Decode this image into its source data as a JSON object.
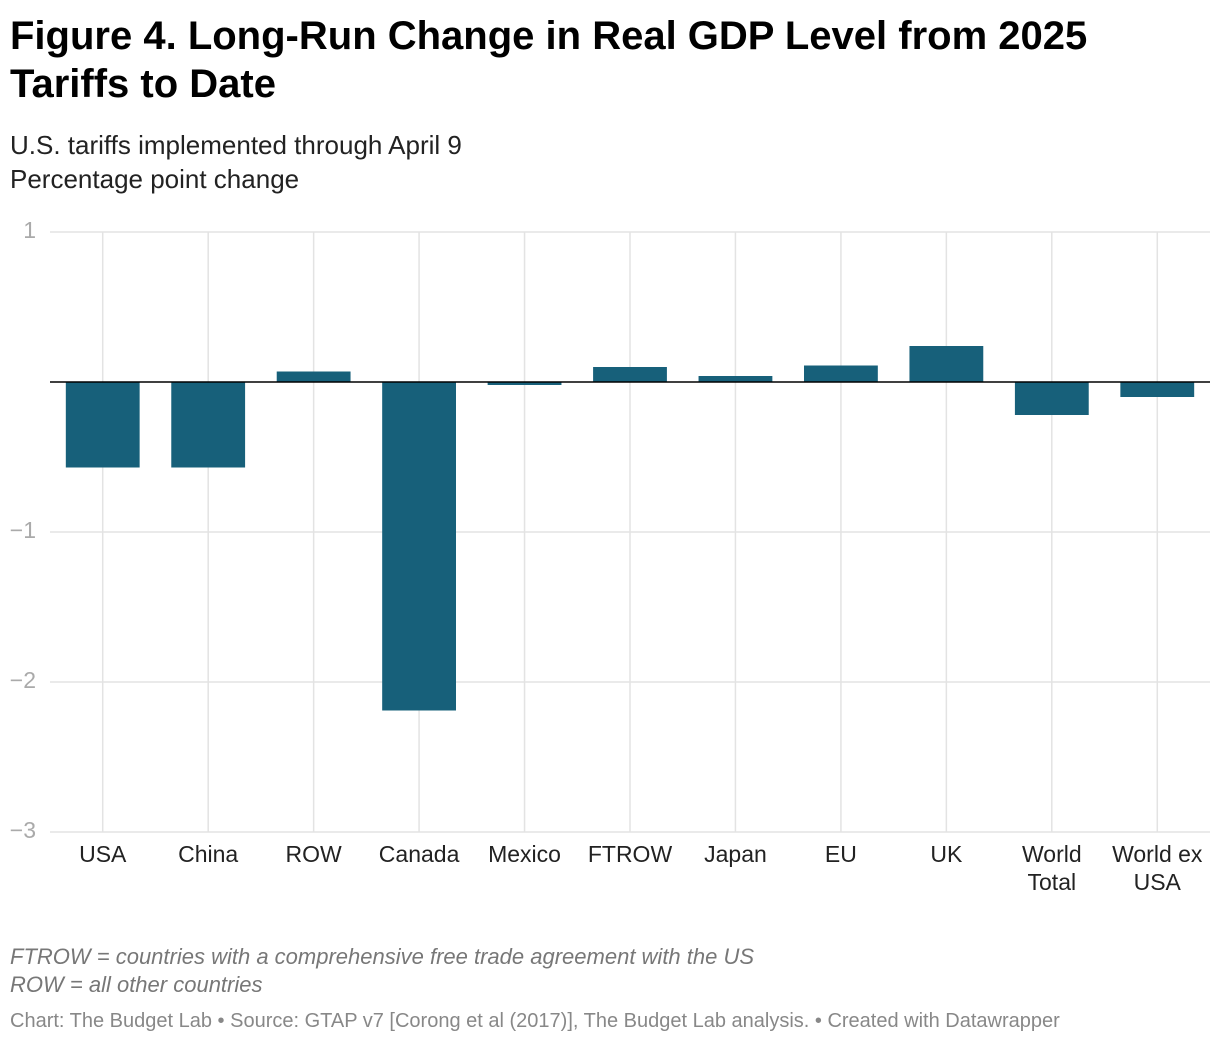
{
  "chart_data": {
    "type": "bar",
    "title": "Figure 4. Long-Run Change in Real GDP Level from 2025 Tariffs to Date",
    "subtitle": [
      "U.S. tariffs implemented through April 9",
      "Percentage point change"
    ],
    "categories": [
      "USA",
      "China",
      "ROW",
      "Canada",
      "Mexico",
      "FTROW",
      "Japan",
      "EU",
      "UK",
      "World Total",
      "World ex USA"
    ],
    "values": [
      -0.57,
      -0.57,
      0.07,
      -2.19,
      -0.02,
      0.1,
      0.04,
      0.11,
      0.24,
      -0.22,
      -0.1
    ],
    "color": "#17607a",
    "ylim": [
      -3,
      1
    ],
    "yticks": [
      {
        "value": -3,
        "label": "−3"
      },
      {
        "value": -2,
        "label": "−2"
      },
      {
        "value": -1,
        "label": "−1"
      },
      1
    ],
    "grid": true,
    "notes": [
      "FTROW = countries with a comprehensive free trade agreement with the US",
      "ROW = all other countries"
    ],
    "credit": "Chart: The Budget Lab • Source: GTAP v7 [Corong et al (2017)], The Budget Lab analysis. • Created with Datawrapper"
  }
}
